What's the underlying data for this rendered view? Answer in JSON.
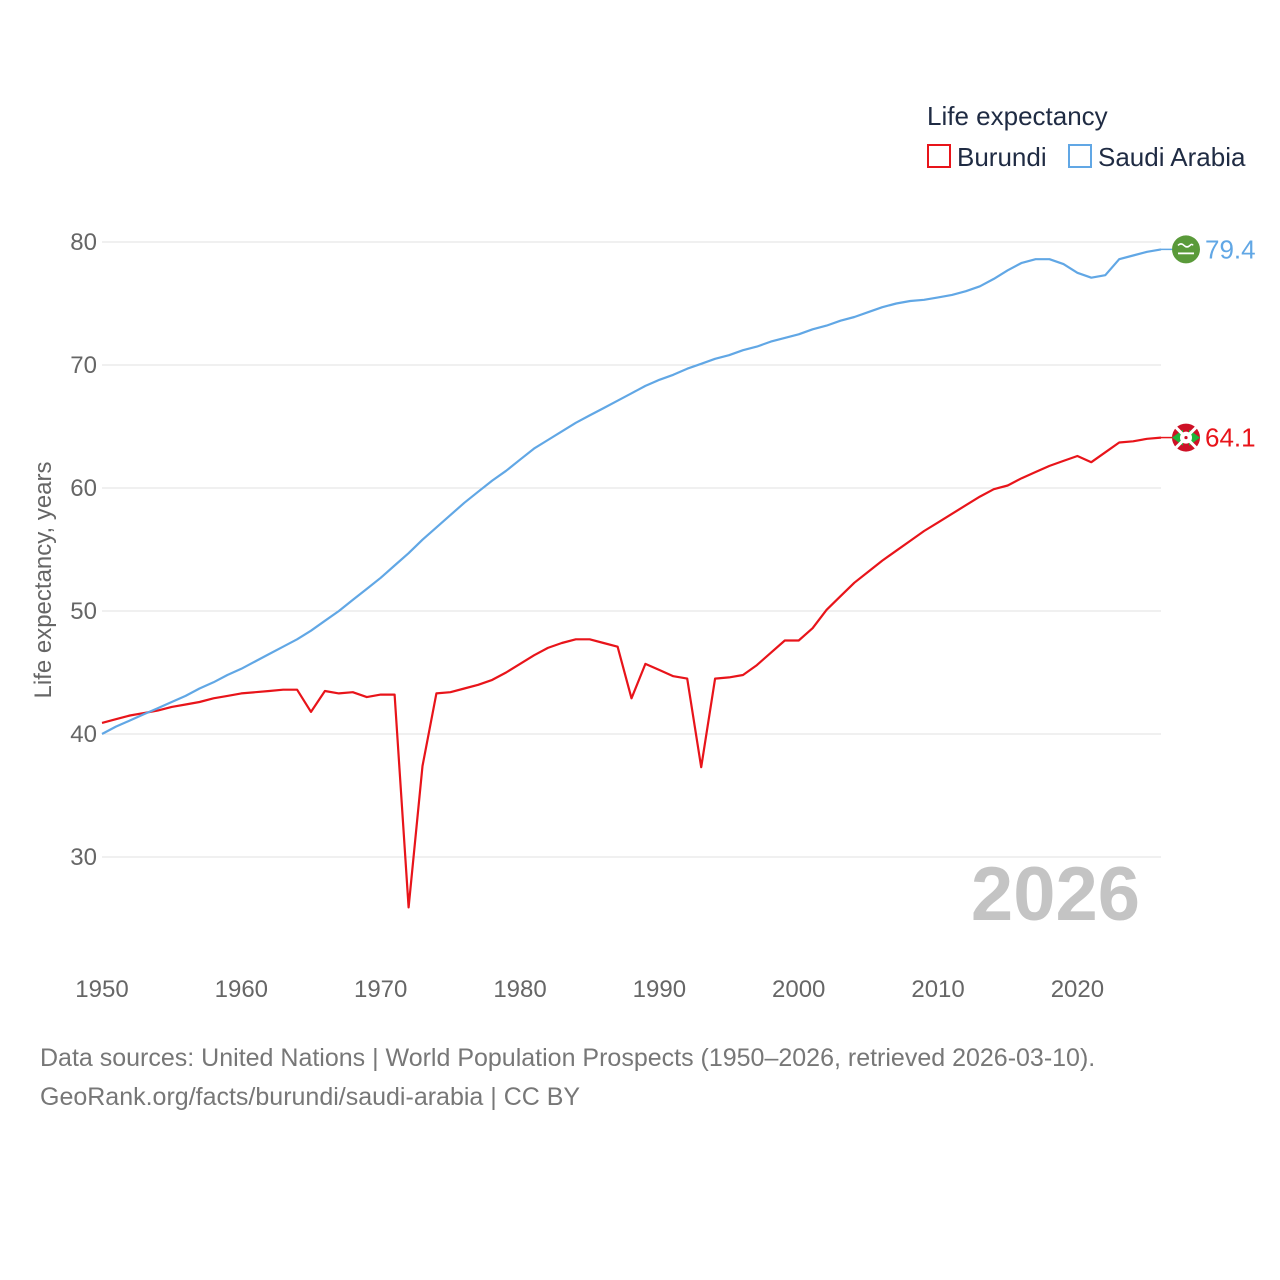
{
  "chart_data": {
    "type": "line",
    "legend_title": "Life expectancy",
    "ylabel": "Life expectancy, years",
    "current_year_label": "2026",
    "xlim": [
      1950,
      2026
    ],
    "ylim": [
      23,
      82
    ],
    "x_ticks": [
      1950,
      1960,
      1970,
      1980,
      1990,
      2000,
      2010,
      2020
    ],
    "y_ticks": [
      30,
      40,
      50,
      60,
      70,
      80
    ],
    "legend_position": "top-right",
    "series": [
      {
        "name": "Burundi",
        "color": "#e8141a",
        "end_label": "64.1",
        "flag_icon": "burundi-flag-icon",
        "x": [
          1950,
          1951,
          1952,
          1953,
          1954,
          1955,
          1956,
          1957,
          1958,
          1959,
          1960,
          1961,
          1962,
          1963,
          1964,
          1965,
          1966,
          1967,
          1968,
          1969,
          1970,
          1971,
          1972,
          1973,
          1974,
          1975,
          1976,
          1977,
          1978,
          1979,
          1980,
          1981,
          1982,
          1983,
          1984,
          1985,
          1986,
          1987,
          1988,
          1989,
          1990,
          1991,
          1992,
          1993,
          1994,
          1995,
          1996,
          1997,
          1998,
          1999,
          2000,
          2001,
          2002,
          2003,
          2004,
          2005,
          2006,
          2007,
          2008,
          2009,
          2010,
          2011,
          2012,
          2013,
          2014,
          2015,
          2016,
          2017,
          2018,
          2019,
          2020,
          2021,
          2022,
          2023,
          2024,
          2025,
          2026
        ],
        "values": [
          40.9,
          41.2,
          41.5,
          41.7,
          41.9,
          42.2,
          42.4,
          42.6,
          42.9,
          43.1,
          43.3,
          43.4,
          43.5,
          43.6,
          43.6,
          41.8,
          43.5,
          43.3,
          43.4,
          43.0,
          43.2,
          43.2,
          25.9,
          37.4,
          43.3,
          43.4,
          43.7,
          44.0,
          44.4,
          45.0,
          45.7,
          46.4,
          47.0,
          47.4,
          47.7,
          47.7,
          47.4,
          47.1,
          42.9,
          45.7,
          45.2,
          44.7,
          44.5,
          37.3,
          44.5,
          44.6,
          44.8,
          45.6,
          46.6,
          47.6,
          47.6,
          48.6,
          50.1,
          51.2,
          52.3,
          53.2,
          54.1,
          54.9,
          55.7,
          56.5,
          57.2,
          57.9,
          58.6,
          59.3,
          59.9,
          60.2,
          60.8,
          61.3,
          61.8,
          62.2,
          62.6,
          62.1,
          62.9,
          63.7,
          63.8,
          64.0,
          64.1
        ]
      },
      {
        "name": "Saudi Arabia",
        "color": "#61a7e5",
        "end_label": "79.4",
        "flag_icon": "saudi-arabia-flag-icon",
        "x": [
          1950,
          1951,
          1952,
          1953,
          1954,
          1955,
          1956,
          1957,
          1958,
          1959,
          1960,
          1961,
          1962,
          1963,
          1964,
          1965,
          1966,
          1967,
          1968,
          1969,
          1970,
          1971,
          1972,
          1973,
          1974,
          1975,
          1976,
          1977,
          1978,
          1979,
          1980,
          1981,
          1982,
          1983,
          1984,
          1985,
          1986,
          1987,
          1988,
          1989,
          1990,
          1991,
          1992,
          1993,
          1994,
          1995,
          1996,
          1997,
          1998,
          1999,
          2000,
          2001,
          2002,
          2003,
          2004,
          2005,
          2006,
          2007,
          2008,
          2009,
          2010,
          2011,
          2012,
          2013,
          2014,
          2015,
          2016,
          2017,
          2018,
          2019,
          2020,
          2021,
          2022,
          2023,
          2024,
          2025,
          2026
        ],
        "values": [
          40.0,
          40.6,
          41.1,
          41.6,
          42.1,
          42.6,
          43.1,
          43.7,
          44.2,
          44.8,
          45.3,
          45.9,
          46.5,
          47.1,
          47.7,
          48.4,
          49.2,
          50.0,
          50.9,
          51.8,
          52.7,
          53.7,
          54.7,
          55.8,
          56.8,
          57.8,
          58.8,
          59.7,
          60.6,
          61.4,
          62.3,
          63.2,
          63.9,
          64.6,
          65.3,
          65.9,
          66.5,
          67.1,
          67.7,
          68.3,
          68.8,
          69.2,
          69.7,
          70.1,
          70.5,
          70.8,
          71.2,
          71.5,
          71.9,
          72.2,
          72.5,
          72.9,
          73.2,
          73.6,
          73.9,
          74.3,
          74.7,
          75.0,
          75.2,
          75.3,
          75.5,
          75.7,
          76.0,
          76.4,
          77.0,
          77.7,
          78.3,
          78.6,
          78.6,
          78.2,
          77.5,
          77.1,
          77.3,
          78.6,
          78.9,
          79.2,
          79.4
        ]
      }
    ],
    "source_line": "Data sources: United Nations | World Population Prospects (1950–2026, retrieved 2026-03-10).",
    "attribution_line": "GeoRank.org/facts/burundi/saudi-arabia | CC BY"
  }
}
